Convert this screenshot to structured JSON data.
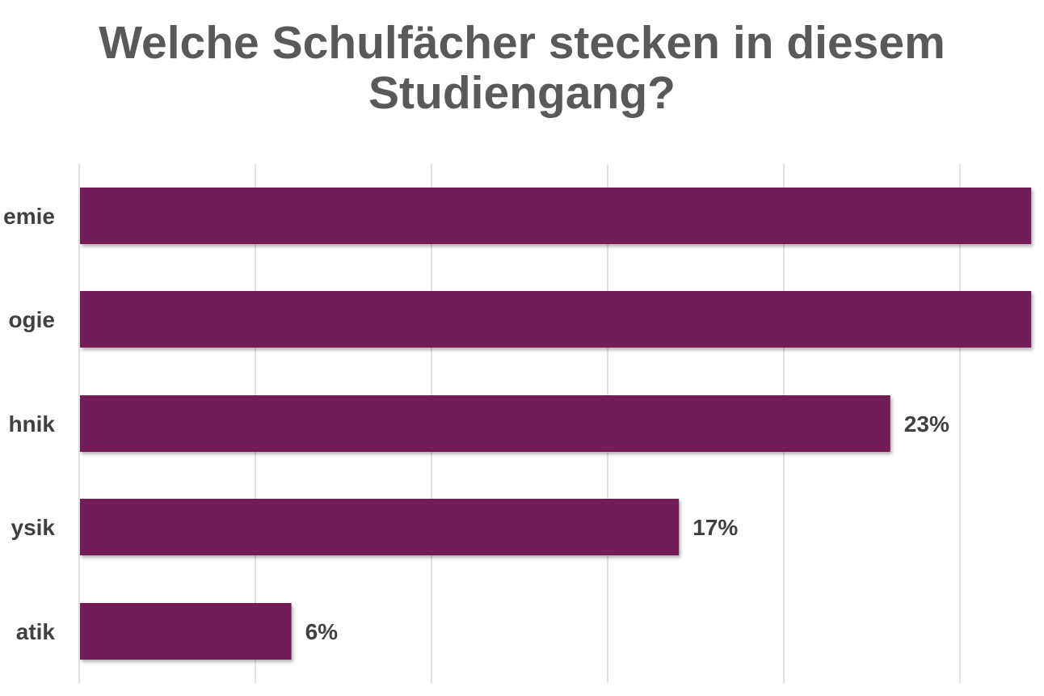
{
  "chart_data": {
    "type": "bar",
    "orientation": "horizontal",
    "title": "Welche Schulfächer stecken in diesem Studiengang?",
    "categories": [
      "emie",
      "ogie",
      "hnik",
      "ysik",
      "atik"
    ],
    "values": [
      27,
      27,
      23,
      17,
      6
    ],
    "data_labels": [
      "",
      "",
      "23%",
      "17%",
      "6%"
    ],
    "unit": "%",
    "xlim": [
      0,
      27
    ],
    "grid_step": 5,
    "grid": true,
    "legend": "none",
    "colors": {
      "bar": "#721D58",
      "grid": "#D9D9D9",
      "text": "#404040",
      "title": "#595959"
    }
  }
}
